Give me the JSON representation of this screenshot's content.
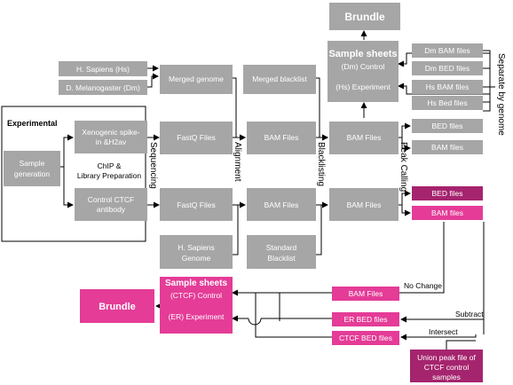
{
  "top_brundle": "Brundle",
  "top_sheets": {
    "title": "Sample sheets",
    "control": "(Dm) Control",
    "experiment": "(Hs) Experiment"
  },
  "right_files": [
    "Dm BAM files",
    "Dm BED files",
    "Hs BAM files",
    "Hs Bed files"
  ],
  "separate_label": "Separate by genome",
  "genomes": {
    "hs": "H. Sapiens (Hs)",
    "dm": "D. Melanogaster (Dm)"
  },
  "merged_genome": "Merged genome",
  "merged_blacklist": "Merged blacklist",
  "experimental_label": "Experimental",
  "sample_generation": [
    "Sample",
    "generation"
  ],
  "xenogenic": [
    "Xenogenic spike-",
    "in &H2av"
  ],
  "chip": [
    "ChIP &",
    "Library Preparation"
  ],
  "control_ctcf": [
    "Control CTCF",
    "antibody"
  ],
  "fastq_top": "FastQ Files",
  "fastq_bottom": "FastQ Files",
  "bam_align_top": "BAM Files",
  "bam_align_bottom": "BAM Files",
  "bam_bl_top": "BAM Files",
  "bam_bl_bottom": "BAM Files",
  "bed_top": "BED files",
  "bam_peak_top": "BAM files",
  "bed_pink": "BED files",
  "bam_pink": "BAM files",
  "hs_genome": [
    "H. Sapiens",
    "Genome"
  ],
  "std_blacklist": [
    "Standard",
    "Blacklist"
  ],
  "stage_labels": {
    "sequencing": "Sequencing",
    "alignment": "Alignment",
    "blacklisting": "Blacklisting",
    "peak_calling": "Peak Calling"
  },
  "bottom_sheets": {
    "title": "Sample sheets",
    "control": "(CTCF) Control",
    "experiment": "(ER) Experiment"
  },
  "bottom_brundle": "Brundle",
  "bam_files_pink": "BAM Files",
  "er_bed": "ER BED files",
  "ctcf_bed": "CTCF BED files",
  "union_peak": [
    "Union peak file of",
    "CTCF control",
    "samples"
  ],
  "edge_labels": {
    "no_change": "No Change",
    "subtract": "Subtract",
    "intersect": "Intersect"
  },
  "colors": {
    "gray": "#a6a6a6",
    "pink": "#e43c97",
    "dark_magenta": "#a5246e"
  }
}
